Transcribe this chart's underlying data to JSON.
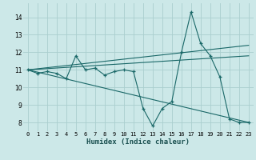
{
  "title": "",
  "xlabel": "Humidex (Indice chaleur)",
  "ylabel": "",
  "background_color": "#cce8e8",
  "grid_color": "#aacece",
  "line_color": "#1a6868",
  "xlim": [
    -0.5,
    23.5
  ],
  "ylim": [
    7.5,
    14.8
  ],
  "yticks": [
    8,
    9,
    10,
    11,
    12,
    13,
    14
  ],
  "xticks": [
    0,
    1,
    2,
    3,
    4,
    5,
    6,
    7,
    8,
    9,
    10,
    11,
    12,
    13,
    14,
    15,
    16,
    17,
    18,
    19,
    20,
    21,
    22,
    23
  ],
  "series": {
    "main": {
      "x": [
        0,
        1,
        2,
        3,
        4,
        5,
        6,
        7,
        8,
        9,
        10,
        11,
        12,
        13,
        14,
        15,
        16,
        17,
        18,
        19,
        20,
        21,
        22,
        23
      ],
      "y": [
        11.0,
        10.8,
        10.9,
        10.8,
        10.5,
        11.8,
        11.0,
        11.1,
        10.7,
        10.9,
        11.0,
        10.9,
        8.8,
        7.8,
        8.8,
        9.2,
        12.0,
        14.3,
        12.5,
        11.8,
        10.6,
        8.2,
        8.0,
        8.0
      ]
    },
    "trend1": {
      "x": [
        0,
        23
      ],
      "y": [
        11.0,
        12.4
      ]
    },
    "trend2": {
      "x": [
        0,
        23
      ],
      "y": [
        11.0,
        11.8
      ]
    },
    "trend3": {
      "x": [
        0,
        23
      ],
      "y": [
        11.0,
        8.0
      ]
    }
  }
}
